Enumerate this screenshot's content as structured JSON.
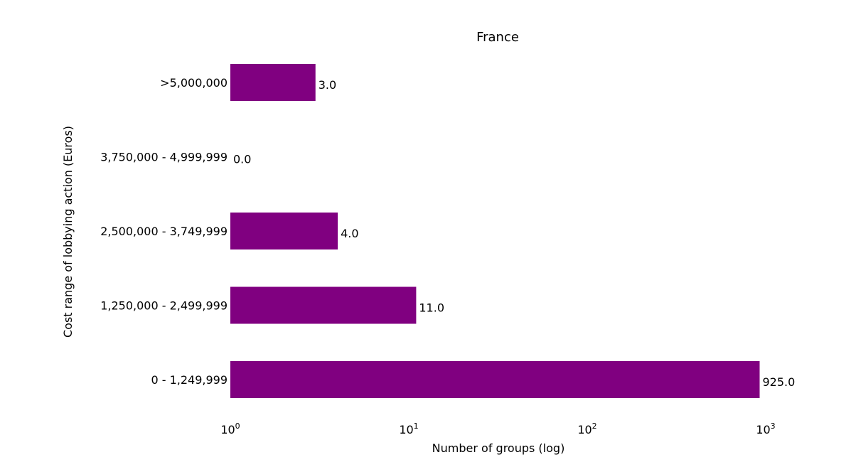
{
  "chart_data": {
    "type": "bar",
    "orientation": "horizontal",
    "title": "France",
    "xlabel": "Number of groups (log)",
    "ylabel": "Cost range of lobbying action (Euros)",
    "x_scale": "log",
    "xlim": [
      1,
      1000
    ],
    "x_ticks": [
      {
        "base": "10",
        "exp": "0"
      },
      {
        "base": "10",
        "exp": "1"
      },
      {
        "base": "10",
        "exp": "2"
      },
      {
        "base": "10",
        "exp": "3"
      }
    ],
    "categories": [
      "0 - 1,249,999",
      "1,250,000 - 2,499,999",
      "2,500,000 - 3,749,999",
      "3,750,000 - 4,999,999",
      ">5,000,000"
    ],
    "values": [
      925,
      11,
      4,
      0,
      3
    ],
    "value_labels": [
      "925.0",
      "11.0",
      "4.0",
      "0.0",
      "3.0"
    ],
    "bar_color": "#800080",
    "grid": false
  }
}
